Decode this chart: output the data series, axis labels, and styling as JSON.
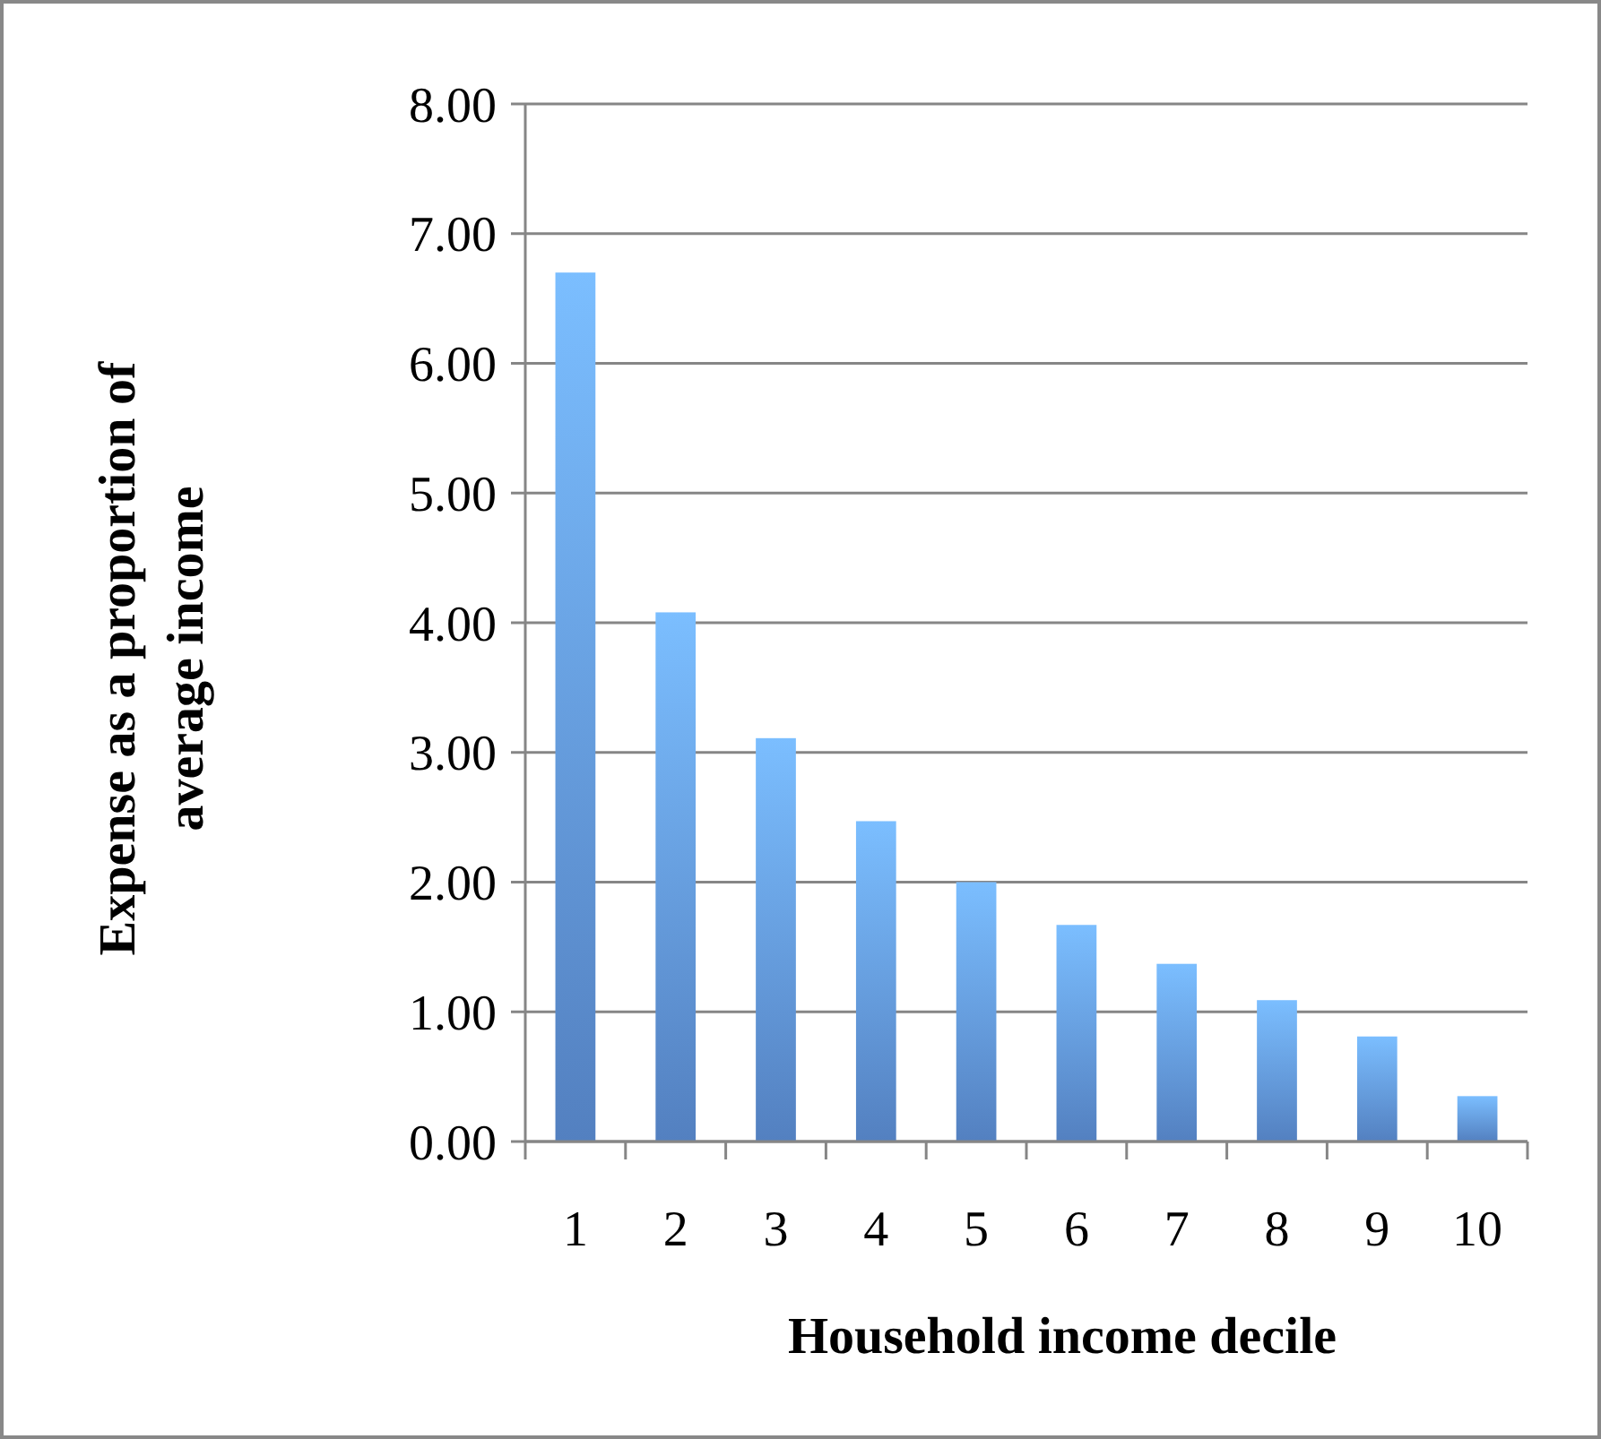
{
  "chart_data": {
    "type": "bar",
    "xlabel": "Household income decile",
    "ylabel": "Expense as a proportion of average income",
    "categories": [
      "1",
      "2",
      "3",
      "4",
      "5",
      "6",
      "7",
      "8",
      "9",
      "10"
    ],
    "values": [
      6.7,
      4.08,
      3.11,
      2.47,
      2.0,
      1.67,
      1.37,
      1.09,
      0.81,
      0.35
    ],
    "color": "#6399e6",
    "ylim": [
      0,
      8
    ],
    "yticks": [
      {
        "value": 0,
        "label": "0.00"
      },
      {
        "value": 1,
        "label": "1.00"
      },
      {
        "value": 2,
        "label": "2.00"
      },
      {
        "value": 3,
        "label": "3.00"
      },
      {
        "value": 4,
        "label": "4.00"
      },
      {
        "value": 5,
        "label": "5.00"
      },
      {
        "value": 6,
        "label": "6.00"
      },
      {
        "value": 7,
        "label": "7.00"
      },
      {
        "value": 8,
        "label": "8.00"
      }
    ],
    "grid": "y"
  }
}
